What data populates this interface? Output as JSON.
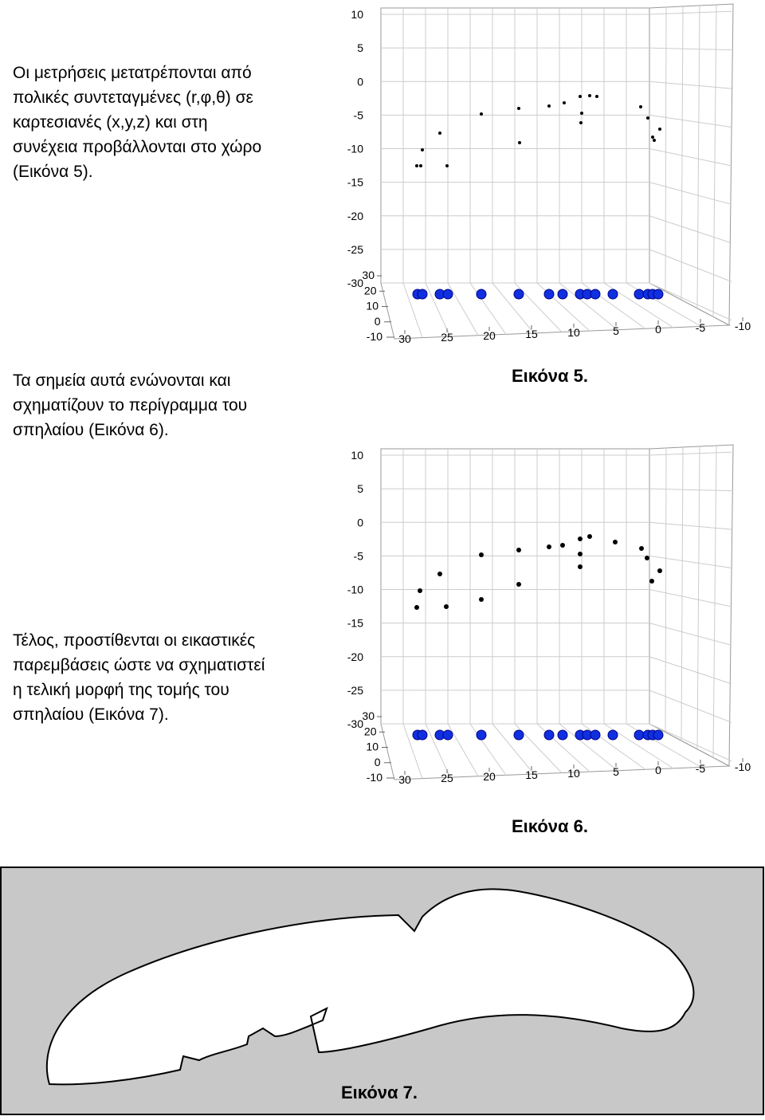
{
  "paragraphs": [
    [
      "Οι μετρήσεις μετατρέπονται από",
      "πολικές συντεταγμένες (r,φ,θ) σε",
      "καρτεσιανές (x,y,z) και στη",
      "συνέχεια προβάλλονται στο χώρο",
      "(Εικόνα 5)."
    ],
    [
      "Τα σημεία αυτά ενώνονται και",
      "σχηματίζουν το περίγραμμα του",
      "σπηλαίου (Εικόνα 6)."
    ],
    [
      "Τέλος, προστίθενται οι εικαστικές",
      "παρεμβάσεις ώστε να σχηματιστεί",
      "η τελική μορφή της τομής του",
      "σπηλαίου (Εικόνα 7)."
    ]
  ],
  "figures": [
    {
      "caption": "Εικόνα 5.",
      "z_ticks": [
        10,
        5,
        0,
        -5,
        -10,
        -15,
        -20,
        -25,
        -30
      ],
      "y_ticks": [
        30,
        20,
        10,
        0,
        -10
      ],
      "x_ticks": [
        30,
        25,
        20,
        15,
        10,
        5,
        0,
        -5,
        -10
      ]
    },
    {
      "caption": "Εικόνα 6.",
      "z_ticks": [
        10,
        5,
        0,
        -5,
        -10,
        -15,
        -20,
        -25,
        -30
      ],
      "y_ticks": [
        30,
        20,
        10,
        0,
        -10
      ],
      "x_ticks": [
        30,
        25,
        20,
        15,
        10,
        5,
        0,
        -5,
        -10
      ]
    },
    {
      "caption": "Εικόνα 7."
    }
  ]
}
